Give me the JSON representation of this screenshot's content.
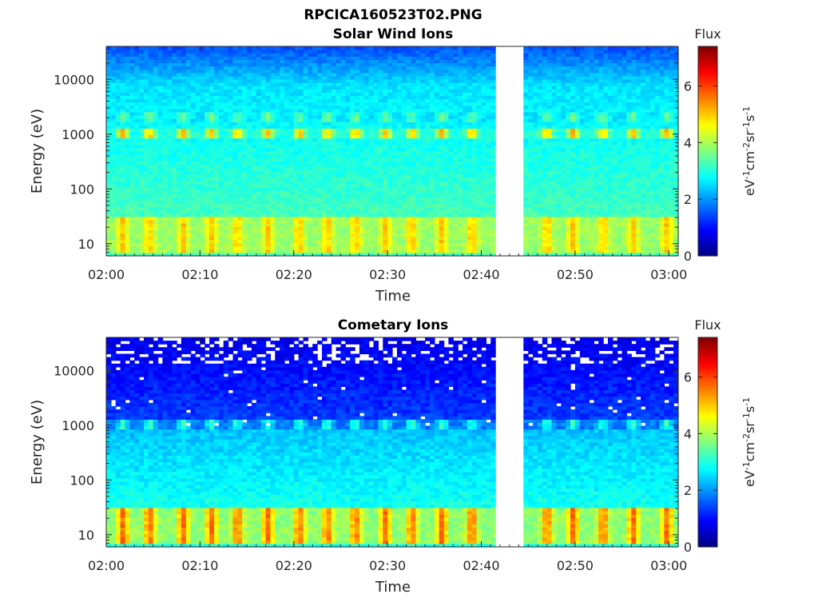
{
  "figure": {
    "title": "RPCICA160523T02.PNG"
  },
  "colormap": "jet",
  "chart_data": [
    {
      "type": "heatmap",
      "title": "Solar Wind Ions",
      "xlabel": "Time",
      "ylabel": "Energy (eV)",
      "x_range": [
        "02:00",
        "03:01"
      ],
      "x_ticks": [
        "02:00",
        "02:10",
        "02:20",
        "02:30",
        "02:40",
        "02:50",
        "03:00"
      ],
      "y_scale": "log",
      "y_range": [
        6,
        40000
      ],
      "y_ticks": [
        "10",
        "100",
        "1000",
        "10000"
      ],
      "data_gap": [
        "02:41:30",
        "02:44:40"
      ],
      "colorbar": {
        "label": "Flux",
        "units": "eV-1cm-2sr-1s-1",
        "range": [
          0,
          7.4
        ],
        "ticks": [
          "0",
          "2",
          "4",
          "6"
        ]
      },
      "pulse_times_min": [
        1.8,
        4.6,
        8.2,
        11.2,
        14,
        17.2,
        20.6,
        23.6,
        26.6,
        29.8,
        32.6,
        35.8,
        39,
        47,
        49.8,
        53,
        56.2,
        59.8
      ],
      "features": {
        "solar_wind_band_eV": [
          1000,
          2000
        ],
        "low_energy_band_eV": [
          8,
          30
        ],
        "background_flux": 2.6
      }
    },
    {
      "type": "heatmap",
      "title": "Cometary Ions",
      "xlabel": "Time",
      "ylabel": "Energy (eV)",
      "x_range": [
        "02:00",
        "03:01"
      ],
      "x_ticks": [
        "02:00",
        "02:10",
        "02:20",
        "02:30",
        "02:40",
        "02:50",
        "03:00"
      ],
      "y_scale": "log",
      "y_range": [
        6,
        40000
      ],
      "y_ticks": [
        "10",
        "100",
        "1000",
        "10000"
      ],
      "data_gap": [
        "02:41:30",
        "02:44:40"
      ],
      "colorbar": {
        "label": "Flux",
        "units": "eV-1cm-2sr-1s-1",
        "range": [
          0,
          7.4
        ],
        "ticks": [
          "0",
          "2",
          "4",
          "6"
        ]
      },
      "pulse_times_min": [
        1.8,
        4.6,
        8.2,
        11.2,
        14,
        17.2,
        20.6,
        23.6,
        26.6,
        29.8,
        32.6,
        35.8,
        39,
        47,
        49.8,
        53,
        56.2,
        59.8
      ],
      "features": {
        "mid_energy_band_eV": [
          800,
          1300
        ],
        "low_energy_band_eV": [
          8,
          30
        ],
        "high_energy_sparse": true
      }
    }
  ]
}
